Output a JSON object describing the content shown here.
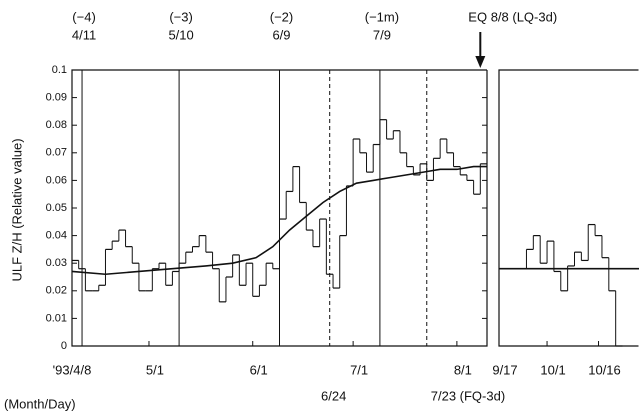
{
  "chart_data": [
    {
      "type": "step",
      "y_label": "ULF Z/H  (Relative value)",
      "x_label": "(Month/Day)",
      "ylim": [
        0,
        0.1
      ],
      "yticks": [
        0,
        0.01,
        0.02,
        0.03,
        0.04,
        0.05,
        0.06,
        0.07,
        0.08,
        0.09,
        0.1
      ],
      "xlim": [
        0,
        124
      ],
      "xticks": [
        {
          "value": 0,
          "label": "'93/4/8"
        },
        {
          "value": 23,
          "label": "5/1"
        },
        {
          "value": 54,
          "label": "6/1"
        },
        {
          "value": 84,
          "label": "7/1"
        },
        {
          "value": 115,
          "label": "8/1"
        }
      ],
      "markers": [
        {
          "x": 3,
          "style": "solid",
          "label": [
            "(−4)",
            "4/11"
          ]
        },
        {
          "x": 32,
          "style": "solid",
          "label": [
            "(−3)",
            "5/10"
          ]
        },
        {
          "x": 62,
          "style": "solid",
          "label": [
            "(−2)",
            "6/9"
          ]
        },
        {
          "x": 92,
          "style": "solid",
          "label": [
            "(−1m)",
            "7/9"
          ]
        },
        {
          "x": 77,
          "style": "dashed",
          "bottom_label": "6/24"
        },
        {
          "x": 106,
          "style": "dashed",
          "bottom_label": "7/23 (FQ-3d)"
        }
      ],
      "event": {
        "x": 122,
        "label": "EQ  8/8 (LQ-3d)"
      },
      "series": [
        {
          "kind": "step",
          "color": "#111",
          "x": [
            0,
            2,
            4,
            6,
            8,
            10,
            12,
            14,
            16,
            18,
            20,
            22,
            24,
            26,
            28,
            30,
            32,
            34,
            36,
            38,
            40,
            42,
            44,
            46,
            48,
            50,
            52,
            54,
            56,
            58,
            60,
            62,
            64,
            66,
            68,
            70,
            72,
            74,
            76,
            78,
            80,
            82,
            84,
            86,
            88,
            90,
            92,
            94,
            96,
            98,
            100,
            102,
            104,
            106,
            108,
            110,
            112,
            114,
            116,
            118,
            120,
            122
          ],
          "values": [
            0.031,
            0.028,
            0.02,
            0.02,
            0.022,
            0.035,
            0.038,
            0.042,
            0.036,
            0.03,
            0.02,
            0.02,
            0.028,
            0.03,
            0.022,
            0.027,
            0.03,
            0.034,
            0.036,
            0.04,
            0.034,
            0.028,
            0.016,
            0.025,
            0.033,
            0.022,
            0.03,
            0.018,
            0.022,
            0.03,
            0.028,
            0.046,
            0.056,
            0.065,
            0.052,
            0.042,
            0.036,
            0.046,
            0.026,
            0.021,
            0.04,
            0.058,
            0.075,
            0.07,
            0.063,
            0.073,
            0.082,
            0.075,
            0.078,
            0.07,
            0.065,
            0.062,
            0.066,
            0.06,
            0.068,
            0.075,
            0.07,
            0.065,
            0.062,
            0.06,
            0.055,
            0.066
          ]
        },
        {
          "kind": "smooth",
          "color": "#111",
          "x": [
            0,
            10,
            20,
            30,
            40,
            48,
            55,
            60,
            65,
            70,
            75,
            80,
            85,
            90,
            95,
            100,
            105,
            110,
            115,
            120,
            124
          ],
          "values": [
            0.027,
            0.026,
            0.027,
            0.028,
            0.029,
            0.03,
            0.032,
            0.036,
            0.042,
            0.047,
            0.052,
            0.056,
            0.059,
            0.06,
            0.061,
            0.062,
            0.063,
            0.064,
            0.064,
            0.065,
            0.065
          ]
        }
      ]
    },
    {
      "type": "step",
      "ylim": [
        0,
        0.1
      ],
      "xlim": [
        0,
        44
      ],
      "xticks": [
        {
          "value": 0,
          "label": "9/17"
        },
        {
          "value": 14,
          "label": "10/1"
        },
        {
          "value": 29,
          "label": "10/16"
        }
      ],
      "series": [
        {
          "kind": "step",
          "color": "#111",
          "x": [
            0,
            2,
            4,
            6,
            8,
            10,
            12,
            14,
            16,
            18,
            20,
            22,
            24,
            26,
            28,
            30,
            32,
            34
          ],
          "values": [
            0.028,
            0.028,
            0.028,
            0.028,
            0.035,
            0.04,
            0.03,
            0.038,
            0.027,
            0.02,
            0.029,
            0.034,
            0.031,
            0.044,
            0.04,
            0.032,
            0.02,
            0
          ]
        },
        {
          "kind": "smooth",
          "color": "#111",
          "x": [
            0,
            44
          ],
          "values": [
            0.028,
            0.028
          ]
        }
      ]
    }
  ]
}
